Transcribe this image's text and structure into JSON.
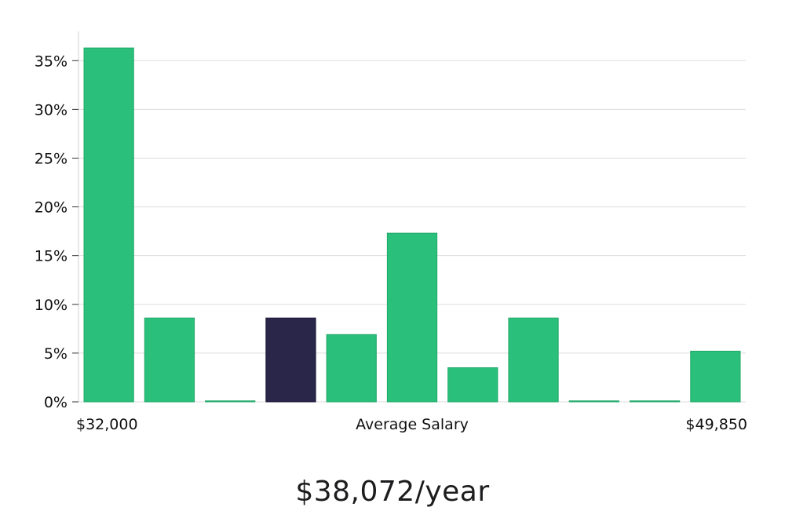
{
  "chart_data": {
    "type": "bar",
    "xlabel": "Average Salary",
    "x_start_label": "$32,000",
    "x_end_label": "$49,850",
    "ylim": [
      0,
      38
    ],
    "y_ticks": [
      0,
      5,
      10,
      15,
      20,
      25,
      30,
      35
    ],
    "y_tick_labels": [
      "0%",
      "5%",
      "10%",
      "15%",
      "20%",
      "25%",
      "30%",
      "35%"
    ],
    "values": [
      36.3,
      8.6,
      0.1,
      8.6,
      6.9,
      17.3,
      3.5,
      8.6,
      0.1,
      0.1,
      5.2
    ],
    "highlight_index": 3,
    "grid": true
  },
  "summary": {
    "average_salary": "$38,072/year"
  },
  "colors": {
    "bar": "#2abf7a",
    "highlight": "#29264a",
    "grid": "#dddddd",
    "axis": "#d0d0d0",
    "text": "#111111"
  }
}
